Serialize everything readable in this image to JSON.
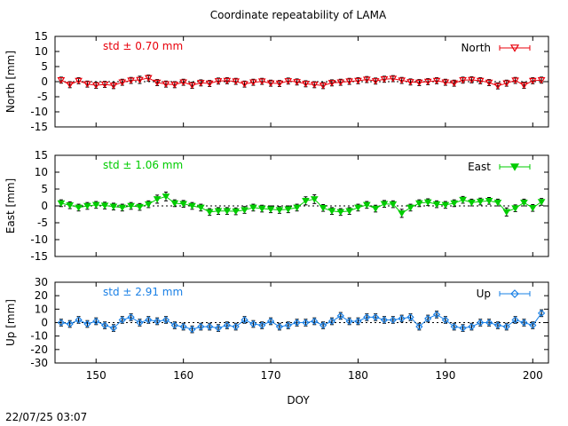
{
  "title": "Coordinate repeatability of LAMA",
  "timestamp": "22/07/25 03:07",
  "chart_data": [
    {
      "type": "scatter",
      "name": "North",
      "legend": "North",
      "ylabel": "North [mm]",
      "std_label": "std ± 0.70 mm",
      "color": "#e8000b",
      "marker": "triangle-down-open",
      "xlim": [
        145.3,
        201.8
      ],
      "ylim": [
        -15,
        15
      ],
      "yticks": [
        15,
        10,
        5,
        0,
        -5,
        -10,
        -15
      ],
      "x": [
        146,
        147,
        148,
        149,
        150,
        151,
        152,
        153,
        154,
        155,
        156,
        157,
        158,
        159,
        160,
        161,
        162,
        163,
        164,
        165,
        166,
        167,
        168,
        169,
        170,
        171,
        172,
        173,
        174,
        175,
        176,
        177,
        178,
        179,
        180,
        181,
        182,
        183,
        184,
        185,
        186,
        187,
        188,
        189,
        190,
        191,
        192,
        193,
        194,
        195,
        196,
        197,
        198,
        199,
        200,
        201
      ],
      "y": [
        0.5,
        -1.0,
        0.3,
        -0.8,
        -1.2,
        -0.9,
        -1.3,
        -0.2,
        0.4,
        0.6,
        1.2,
        -0.3,
        -0.8,
        -1.0,
        -0.2,
        -1.2,
        -0.4,
        -0.6,
        0.2,
        0.3,
        0.1,
        -0.8,
        -0.2,
        0.1,
        -0.5,
        -0.6,
        0.2,
        -0.1,
        -0.7,
        -1.0,
        -1.3,
        -0.4,
        -0.2,
        0.1,
        0.3,
        0.7,
        0.2,
        0.8,
        1.0,
        0.4,
        -0.1,
        -0.3,
        0.0,
        0.3,
        -0.2,
        -0.5,
        0.5,
        0.6,
        0.3,
        -0.3,
        -1.4,
        -0.5,
        0.4,
        -1.2,
        0.3,
        0.5
      ],
      "err": [
        1.0,
        1.0,
        1.0,
        1.0,
        1.0,
        1.0,
        1.0,
        1.0,
        1.0,
        1.2,
        1.0,
        1.0,
        1.0,
        1.0,
        1.0,
        1.0,
        1.0,
        1.0,
        1.0,
        1.0,
        1.0,
        1.0,
        1.0,
        1.0,
        1.0,
        1.0,
        1.0,
        1.0,
        1.0,
        1.0,
        1.0,
        1.0,
        1.0,
        1.0,
        1.0,
        1.0,
        1.0,
        1.0,
        1.0,
        1.0,
        1.0,
        1.0,
        1.0,
        1.0,
        1.0,
        1.0,
        1.0,
        1.0,
        1.0,
        1.0,
        1.0,
        1.0,
        1.0,
        1.0,
        1.0,
        1.0
      ]
    },
    {
      "type": "scatter",
      "name": "East",
      "legend": "East",
      "ylabel": "East [mm]",
      "std_label": "std ± 1.06 mm",
      "color": "#00cc00",
      "marker": "triangle-down-filled",
      "xlim": [
        145.3,
        201.8
      ],
      "ylim": [
        -15,
        15
      ],
      "yticks": [
        15,
        10,
        5,
        0,
        -5,
        -10,
        -15
      ],
      "x": [
        146,
        147,
        148,
        149,
        150,
        151,
        152,
        153,
        154,
        155,
        156,
        157,
        158,
        159,
        160,
        161,
        162,
        163,
        164,
        165,
        166,
        167,
        168,
        169,
        170,
        171,
        172,
        173,
        174,
        175,
        176,
        177,
        178,
        179,
        180,
        181,
        182,
        183,
        184,
        185,
        186,
        187,
        188,
        189,
        190,
        191,
        192,
        193,
        194,
        195,
        196,
        197,
        198,
        199,
        200,
        201
      ],
      "y": [
        0.8,
        0.2,
        -0.5,
        0.0,
        0.3,
        0.1,
        -0.2,
        -0.5,
        0.0,
        -0.3,
        0.5,
        2.0,
        2.8,
        0.8,
        0.6,
        0.0,
        -0.5,
        -1.8,
        -1.5,
        -1.5,
        -1.6,
        -1.2,
        -0.5,
        -0.8,
        -1.0,
        -1.2,
        -1.0,
        -0.5,
        1.5,
        2.0,
        -0.6,
        -1.5,
        -1.8,
        -1.5,
        -0.5,
        0.3,
        -0.8,
        0.6,
        0.5,
        -2.2,
        -0.5,
        0.8,
        1.1,
        0.5,
        0.3,
        0.8,
        1.8,
        1.0,
        1.3,
        1.5,
        1.0,
        -1.8,
        -0.7,
        1.0,
        -0.6,
        1.2
      ],
      "err": [
        1.0,
        1.0,
        1.0,
        1.0,
        1.0,
        1.0,
        1.0,
        1.0,
        1.0,
        1.0,
        1.0,
        1.2,
        1.3,
        1.0,
        1.0,
        1.0,
        1.0,
        1.0,
        1.0,
        1.0,
        1.0,
        1.0,
        1.0,
        1.0,
        1.0,
        1.0,
        1.0,
        1.0,
        1.2,
        1.3,
        1.0,
        1.0,
        1.0,
        1.0,
        1.0,
        1.0,
        1.0,
        1.0,
        1.0,
        1.2,
        1.0,
        1.0,
        1.0,
        1.0,
        1.0,
        1.0,
        1.0,
        1.0,
        1.0,
        1.0,
        1.0,
        1.2,
        1.0,
        1.0,
        1.0,
        1.0
      ]
    },
    {
      "type": "scatter",
      "name": "Up",
      "legend": "Up",
      "ylabel": "Up [mm]",
      "std_label": "std ± 2.91 mm",
      "color": "#1a80e6",
      "marker": "diamond-open",
      "xlim": [
        145.3,
        201.8
      ],
      "ylim": [
        -30,
        30
      ],
      "yticks": [
        30,
        20,
        10,
        0,
        -10,
        -20,
        -30
      ],
      "xticks": [
        150,
        160,
        170,
        180,
        190,
        200
      ],
      "xlabel": "DOY",
      "x": [
        146,
        147,
        148,
        149,
        150,
        151,
        152,
        153,
        154,
        155,
        156,
        157,
        158,
        159,
        160,
        161,
        162,
        163,
        164,
        165,
        166,
        167,
        168,
        169,
        170,
        171,
        172,
        173,
        174,
        175,
        176,
        177,
        178,
        179,
        180,
        181,
        182,
        183,
        184,
        185,
        186,
        187,
        188,
        189,
        190,
        191,
        192,
        193,
        194,
        195,
        196,
        197,
        198,
        199,
        200,
        201
      ],
      "y": [
        0.0,
        -1.0,
        2.0,
        -1.0,
        1.0,
        -2.0,
        -4.0,
        2.0,
        4.0,
        0.0,
        2.0,
        1.0,
        2.0,
        -2.0,
        -3.0,
        -5.0,
        -3.0,
        -3.0,
        -4.0,
        -2.0,
        -3.0,
        2.0,
        -1.0,
        -2.0,
        1.0,
        -3.0,
        -2.0,
        0.0,
        0.0,
        1.0,
        -2.0,
        1.0,
        5.0,
        1.0,
        1.0,
        4.0,
        4.0,
        2.0,
        2.0,
        3.0,
        4.0,
        -3.0,
        3.0,
        6.0,
        2.0,
        -3.0,
        -4.0,
        -3.0,
        0.0,
        0.0,
        -2.0,
        -3.0,
        2.0,
        0.0,
        -2.0,
        7.0
      ],
      "err": [
        2.5,
        2.5,
        2.5,
        2.5,
        2.5,
        2.5,
        2.5,
        2.5,
        2.5,
        2.5,
        2.5,
        2.5,
        2.5,
        2.5,
        2.5,
        2.5,
        2.5,
        2.5,
        2.5,
        2.5,
        2.5,
        2.5,
        2.5,
        2.5,
        2.5,
        2.5,
        2.5,
        2.5,
        2.5,
        2.5,
        2.5,
        2.5,
        2.5,
        2.5,
        2.5,
        2.5,
        2.5,
        2.5,
        2.5,
        2.5,
        2.5,
        2.5,
        2.5,
        2.5,
        2.5,
        2.5,
        2.5,
        2.5,
        2.5,
        2.5,
        2.5,
        2.5,
        2.5,
        2.5,
        2.5,
        2.5
      ]
    }
  ]
}
